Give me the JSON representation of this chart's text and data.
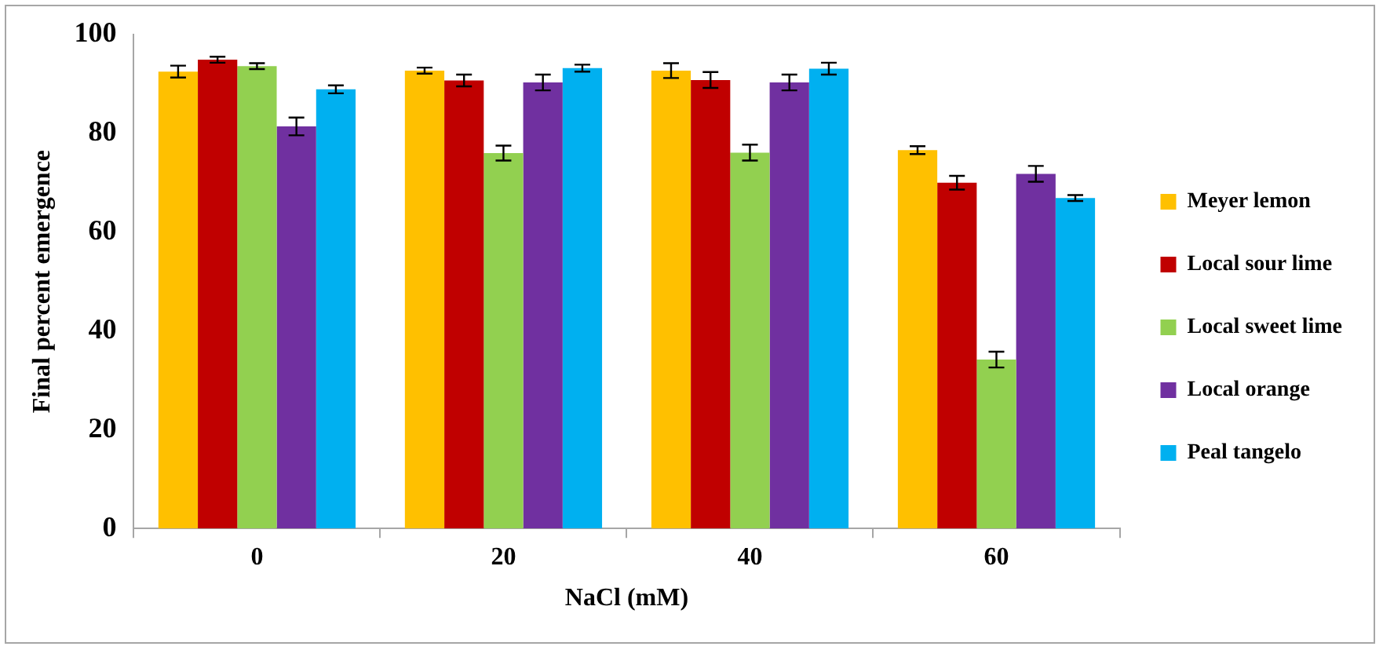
{
  "chart_data": {
    "type": "bar",
    "xlabel": "NaCl (mM)",
    "ylabel": "Final percent emergence",
    "categories": [
      "0",
      "20",
      "40",
      "60"
    ],
    "series": [
      {
        "name": "Meyer lemon",
        "color": "#ffc000",
        "values": [
          92.5,
          92.7,
          92.7,
          76.6
        ],
        "errors": [
          1.2,
          0.6,
          1.5,
          0.8
        ]
      },
      {
        "name": "Local sour lime",
        "color": "#c00000",
        "values": [
          94.9,
          90.7,
          90.8,
          70.0
        ],
        "errors": [
          0.6,
          1.2,
          1.6,
          1.4
        ]
      },
      {
        "name": "Local sweet lime",
        "color": "#92d050",
        "values": [
          93.6,
          76.0,
          76.1,
          34.2
        ],
        "errors": [
          0.6,
          1.5,
          1.6,
          1.6
        ]
      },
      {
        "name": "Local orange",
        "color": "#7030a0",
        "values": [
          81.4,
          90.3,
          90.3,
          71.8
        ],
        "errors": [
          1.8,
          1.6,
          1.6,
          1.6
        ]
      },
      {
        "name": "Peal tangelo",
        "color": "#00b0f0",
        "values": [
          88.9,
          93.2,
          93.1,
          66.9
        ],
        "errors": [
          0.8,
          0.7,
          1.2,
          0.6
        ]
      }
    ],
    "ylim": [
      0,
      100
    ],
    "yticks": [
      0,
      20,
      40,
      60,
      80,
      100
    ],
    "grid": false,
    "legend": "right"
  }
}
